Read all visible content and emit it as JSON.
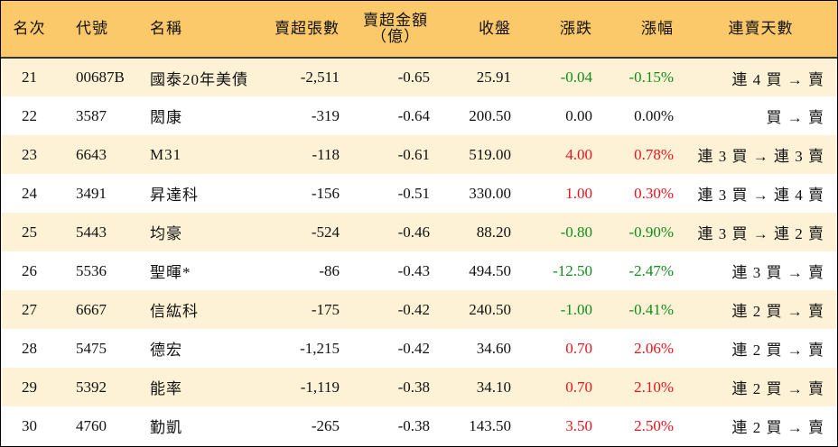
{
  "headers": {
    "rank": "名次",
    "code": "代號",
    "name": "名稱",
    "sell_lots": "賣超張數",
    "sell_amount_line1": "賣超金額",
    "sell_amount_line2": "（億）",
    "close": "收盤",
    "change": "漲跌",
    "change_pct": "漲幅",
    "streak": "連賣天數"
  },
  "colors": {
    "header_bg": "#fbc96a",
    "band_bg": "#fdf2d6",
    "up": "#e8141c",
    "down": "#128c1b"
  },
  "rows": [
    {
      "rank": "21",
      "code": "00687B",
      "name": "國泰20年美債",
      "lots": "-2,511",
      "amount": "-0.65",
      "close": "25.91",
      "change": "-0.04",
      "pct": "-0.15%",
      "dir": "down",
      "streak": "連 4 買 → 賣"
    },
    {
      "rank": "22",
      "code": "3587",
      "name": "閎康",
      "lots": "-319",
      "amount": "-0.64",
      "close": "200.50",
      "change": "0.00",
      "pct": "0.00%",
      "dir": "flat",
      "streak": "買 → 賣"
    },
    {
      "rank": "23",
      "code": "6643",
      "name": "M31",
      "lots": "-118",
      "amount": "-0.61",
      "close": "519.00",
      "change": "4.00",
      "pct": "0.78%",
      "dir": "up",
      "streak": "連 3 買 → 連 3 賣"
    },
    {
      "rank": "24",
      "code": "3491",
      "name": "昇達科",
      "lots": "-156",
      "amount": "-0.51",
      "close": "330.00",
      "change": "1.00",
      "pct": "0.30%",
      "dir": "up",
      "streak": "連 3 買 → 連 4 賣"
    },
    {
      "rank": "25",
      "code": "5443",
      "name": "均豪",
      "lots": "-524",
      "amount": "-0.46",
      "close": "88.20",
      "change": "-0.80",
      "pct": "-0.90%",
      "dir": "down",
      "streak": "連 3 買 → 連 2 賣"
    },
    {
      "rank": "26",
      "code": "5536",
      "name": "聖暉*",
      "lots": "-86",
      "amount": "-0.43",
      "close": "494.50",
      "change": "-12.50",
      "pct": "-2.47%",
      "dir": "down",
      "streak": "連 3 買 → 賣"
    },
    {
      "rank": "27",
      "code": "6667",
      "name": "信紘科",
      "lots": "-175",
      "amount": "-0.42",
      "close": "240.50",
      "change": "-1.00",
      "pct": "-0.41%",
      "dir": "down",
      "streak": "連 2 買 → 賣"
    },
    {
      "rank": "28",
      "code": "5475",
      "name": "德宏",
      "lots": "-1,215",
      "amount": "-0.42",
      "close": "34.60",
      "change": "0.70",
      "pct": "2.06%",
      "dir": "up",
      "streak": "連 2 買 → 賣"
    },
    {
      "rank": "29",
      "code": "5392",
      "name": "能率",
      "lots": "-1,119",
      "amount": "-0.38",
      "close": "34.10",
      "change": "0.70",
      "pct": "2.10%",
      "dir": "up",
      "streak": "連 2 買 → 賣"
    },
    {
      "rank": "30",
      "code": "4760",
      "name": "勤凱",
      "lots": "-265",
      "amount": "-0.38",
      "close": "143.50",
      "change": "3.50",
      "pct": "2.50%",
      "dir": "up",
      "streak": "連 2 買 → 賣"
    }
  ]
}
